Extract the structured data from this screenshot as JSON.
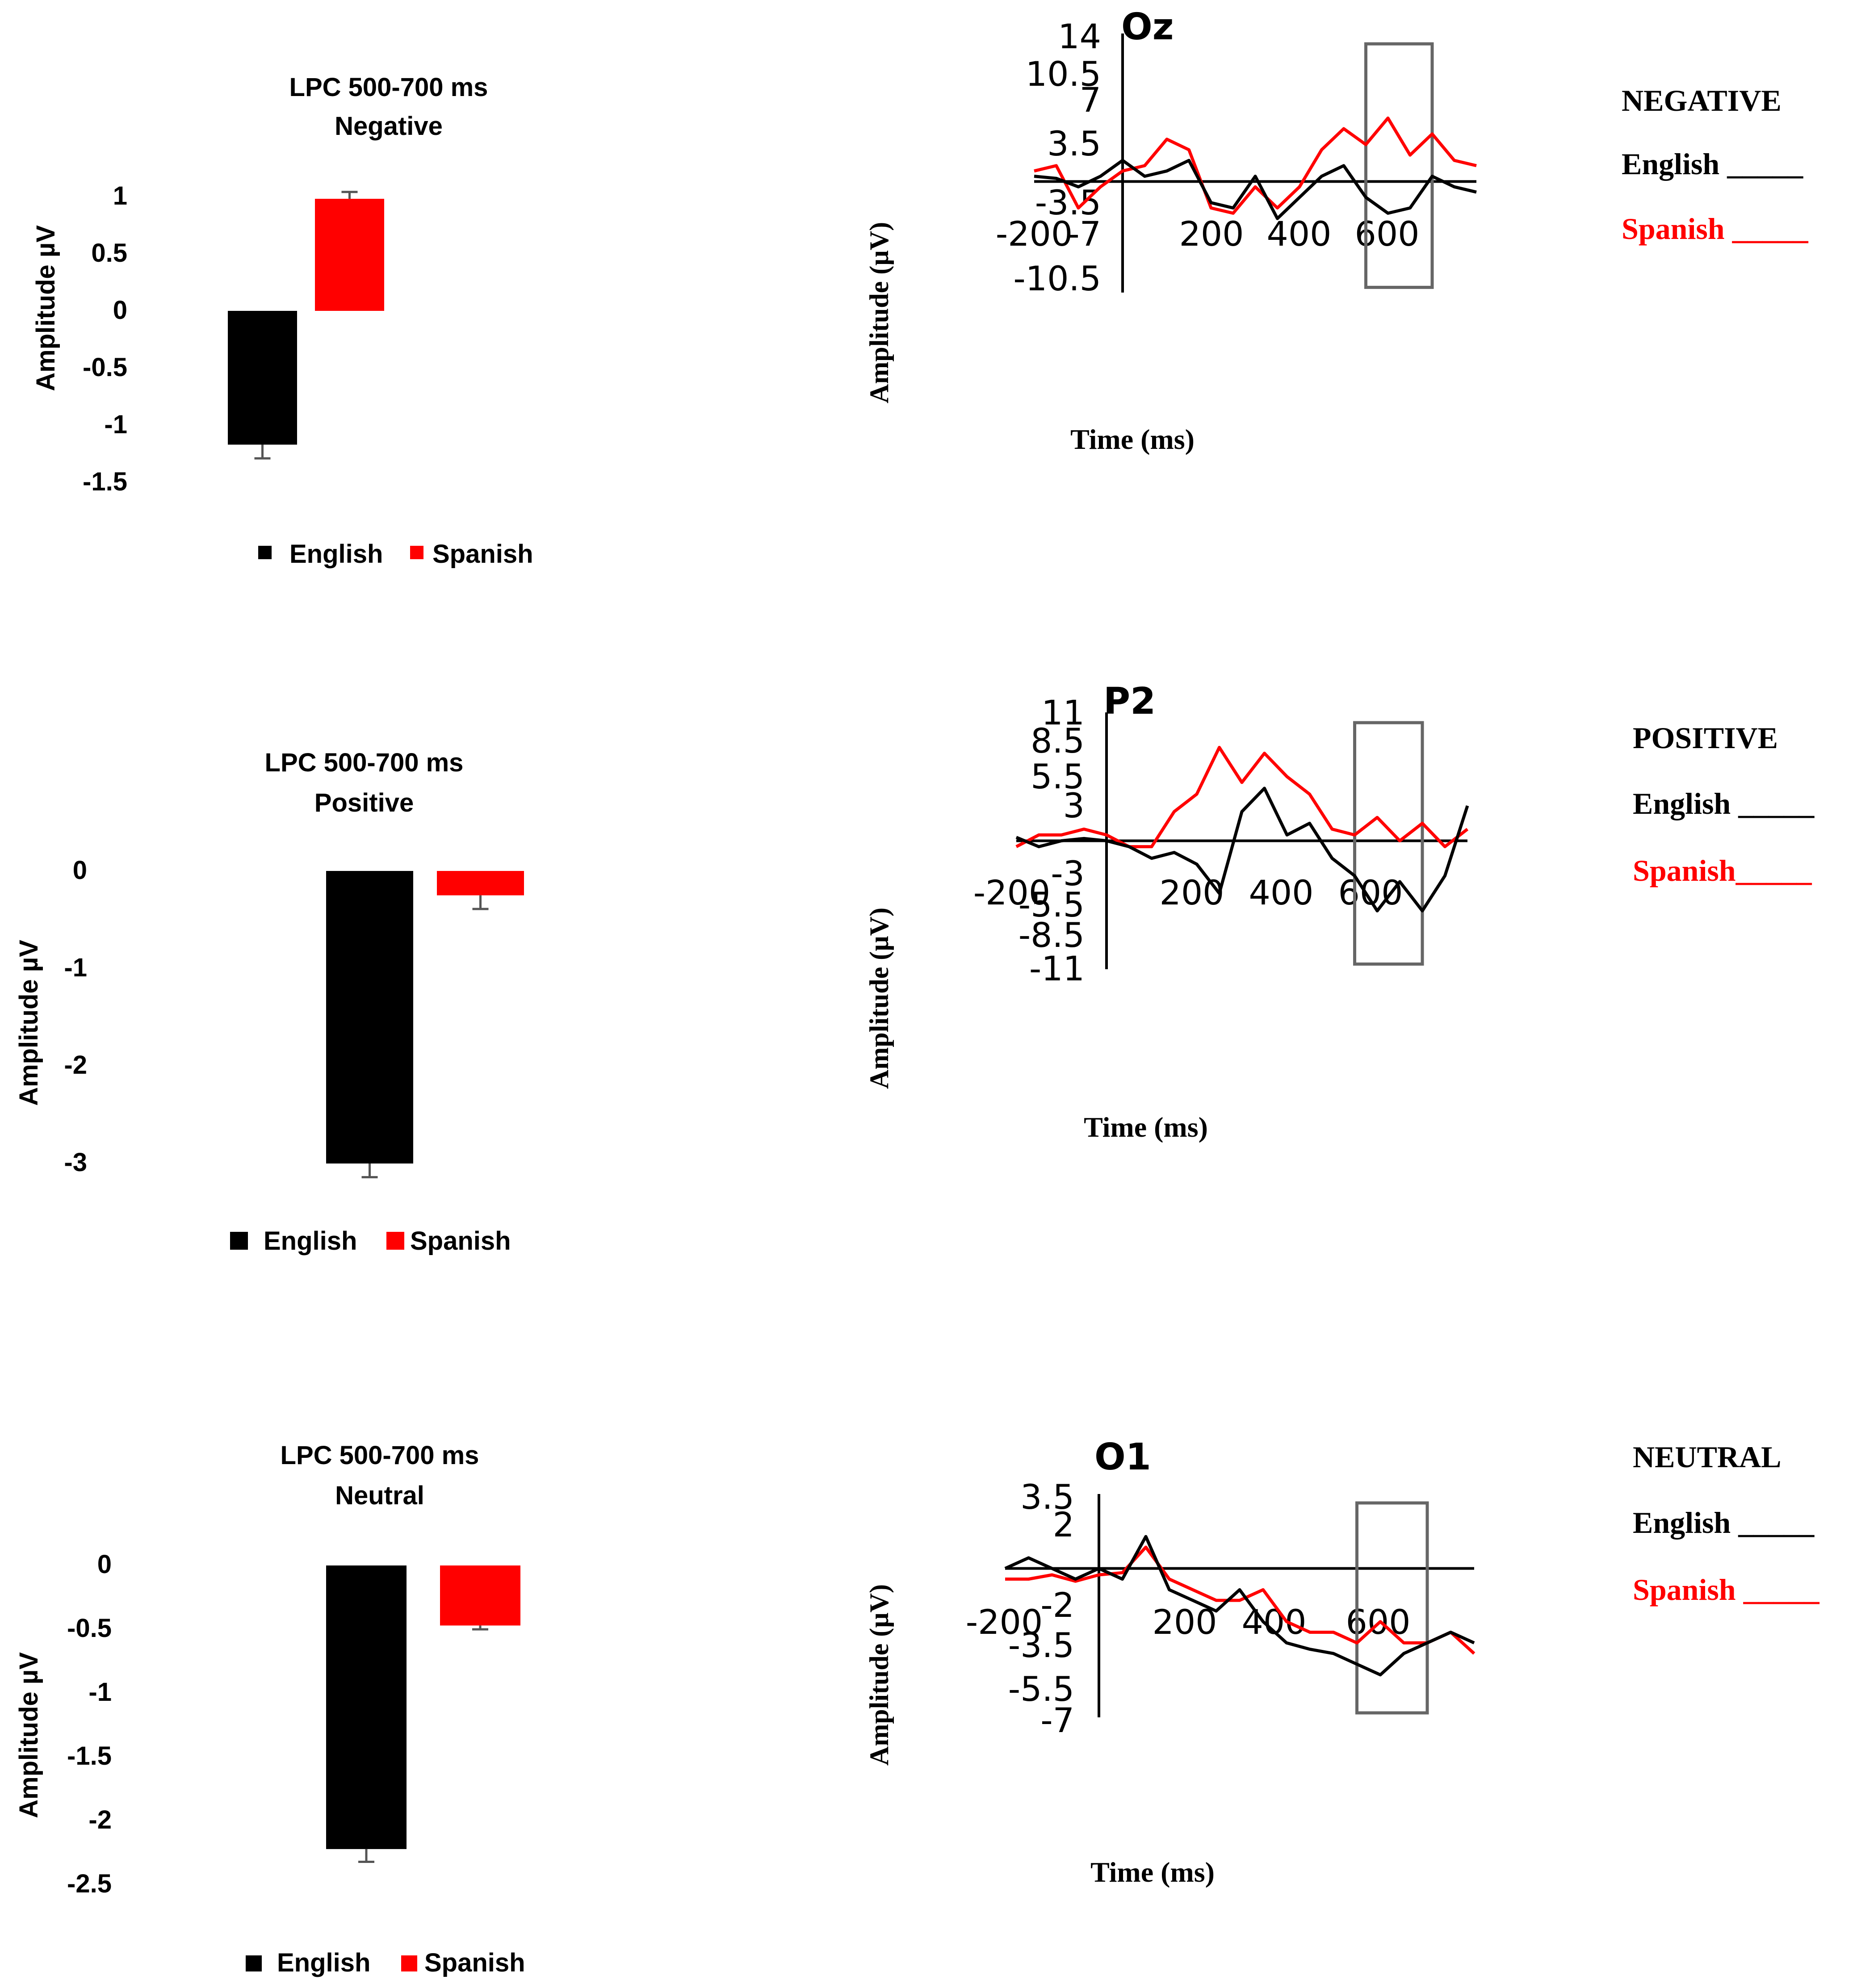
{
  "bar_panels": [
    {
      "title_line1": "LPC 500-700 ms",
      "title_line2": "Negative",
      "ylabel": "Amplitude µV",
      "tick_labels": [
        "1",
        "0.5",
        "0",
        "-0.5",
        "-1",
        "-1.5"
      ],
      "legend": [
        "English",
        "Spanish"
      ]
    },
    {
      "title_line1": "LPC 500-700 ms",
      "title_line2": "Positive",
      "ylabel": "Amplitude µV",
      "tick_labels": [
        "0",
        "-1",
        "-2",
        "-3"
      ],
      "legend": [
        "English",
        "Spanish"
      ]
    },
    {
      "title_line1": "LPC 500-700 ms",
      "title_line2": "Neutral",
      "ylabel": "Amplitude µV",
      "tick_labels": [
        "0",
        "-0.5",
        "-1",
        "-1.5",
        "-2",
        "-2.5"
      ],
      "legend": [
        "English",
        "Spanish"
      ]
    }
  ],
  "erp_panels": [
    {
      "electrode": "Oz",
      "y_tick_labels": [
        "14",
        "10.5",
        "7",
        "3.5",
        "-3.5",
        "-7",
        "-10.5"
      ],
      "x_tick_labels": [
        "-200",
        "200",
        "400",
        "600"
      ],
      "ylabel": "Amplitude    (µV)",
      "xlabel": "Time (ms)",
      "condition": "NEGATIVE",
      "legend_english": "English _____",
      "legend_spanish": "Spanish _____"
    },
    {
      "electrode": "P2",
      "y_tick_labels": [
        "11",
        "8.5",
        "5.5",
        "3",
        "-3",
        "-5.5",
        "-8.5",
        "-11"
      ],
      "x_tick_labels": [
        "-200",
        "200",
        "400",
        "600"
      ],
      "ylabel": "Amplitude    (µV)",
      "xlabel": "Time (ms)",
      "condition": "POSITIVE",
      "legend_english": "English _____",
      "legend_spanish": "Spanish_____"
    },
    {
      "electrode": "O1",
      "y_tick_labels": [
        "3.5",
        "2",
        "-2",
        "-3.5",
        "-5.5",
        "-7"
      ],
      "x_tick_labels": [
        "-200",
        "200",
        "400",
        "600"
      ],
      "ylabel": "Amplitude    (µV)",
      "xlabel": "Time (ms)",
      "condition": "NEUTRAL",
      "legend_english": "English _____",
      "legend_spanish": "Spanish _____"
    }
  ],
  "colors": {
    "english": "#000000",
    "spanish": "#ff0000",
    "window_box": "#666666"
  },
  "chart_data": [
    {
      "type": "bar",
      "title": "LPC 500-700 ms Negative",
      "ylabel": "Amplitude µV",
      "ylim": [
        -1.5,
        1
      ],
      "categories": [
        "English",
        "Spanish"
      ],
      "values": [
        -1.17,
        0.98
      ],
      "errors": [
        0.12,
        0.06
      ],
      "legend_position": "bottom"
    },
    {
      "type": "bar",
      "title": "LPC 500-700 ms Positive",
      "ylabel": "Amplitude µV",
      "ylim": [
        -3,
        0
      ],
      "categories": [
        "English",
        "Spanish"
      ],
      "values": [
        -3.0,
        -0.25
      ],
      "errors": [
        0.14,
        0.14
      ],
      "legend_position": "bottom"
    },
    {
      "type": "bar",
      "title": "LPC 500-700 ms Neutral",
      "ylabel": "Amplitude µV",
      "ylim": [
        -2.5,
        0
      ],
      "categories": [
        "English",
        "Spanish"
      ],
      "values": [
        -2.22,
        -0.47
      ],
      "errors": [
        0.1,
        0.03
      ],
      "legend_position": "bottom"
    },
    {
      "type": "line",
      "title": "Oz",
      "xlabel": "Time (ms)",
      "ylabel": "Amplitude (µV)",
      "xlim": [
        -200,
        800
      ],
      "ylim": [
        -10.5,
        14
      ],
      "window": [
        550,
        700
      ],
      "x": [
        -200,
        -150,
        -100,
        -50,
        0,
        50,
        100,
        150,
        200,
        250,
        300,
        350,
        400,
        450,
        500,
        550,
        600,
        650,
        700,
        750,
        800
      ],
      "series": [
        {
          "name": "English",
          "values": [
            0.5,
            0.3,
            -0.5,
            0.5,
            2.0,
            0.5,
            1.0,
            2.0,
            -2.0,
            -2.5,
            0.5,
            -3.5,
            -1.5,
            0.5,
            1.5,
            -1.5,
            -3.0,
            -2.5,
            0.5,
            -0.5,
            -1.0
          ]
        },
        {
          "name": "Spanish",
          "values": [
            1.0,
            1.5,
            -2.5,
            -0.5,
            1.0,
            1.5,
            4.0,
            3.0,
            -2.5,
            -3.0,
            -0.5,
            -2.5,
            -0.5,
            3.0,
            5.0,
            3.5,
            6.0,
            2.5,
            4.5,
            2.0,
            1.5
          ]
        }
      ]
    },
    {
      "type": "line",
      "title": "P2",
      "xlabel": "Time (ms)",
      "ylabel": "Amplitude (µV)",
      "xlim": [
        -200,
        800
      ],
      "ylim": [
        -11,
        11
      ],
      "window": [
        550,
        700
      ],
      "x": [
        -200,
        -150,
        -100,
        -50,
        0,
        50,
        100,
        150,
        200,
        250,
        300,
        350,
        400,
        450,
        500,
        550,
        600,
        650,
        700,
        750,
        800
      ],
      "series": [
        {
          "name": "English",
          "values": [
            0.3,
            -0.5,
            0.0,
            0.2,
            0.0,
            -0.5,
            -1.5,
            -1.0,
            -2.0,
            -4.5,
            2.5,
            4.5,
            0.5,
            1.5,
            -1.5,
            -3.0,
            -6.0,
            -3.5,
            -6.0,
            -3.0,
            3.0
          ]
        },
        {
          "name": "Spanish",
          "values": [
            -0.5,
            0.5,
            0.5,
            1.0,
            0.5,
            -0.5,
            -0.5,
            2.5,
            4.0,
            8.0,
            5.0,
            7.5,
            5.5,
            4.0,
            1.0,
            0.5,
            2.0,
            0.0,
            1.5,
            -0.5,
            1.0
          ]
        }
      ]
    },
    {
      "type": "line",
      "title": "O1",
      "xlabel": "Time (ms)",
      "ylabel": "Amplitude (µV)",
      "xlim": [
        -200,
        800
      ],
      "ylim": [
        -7,
        3.5
      ],
      "window": [
        550,
        700
      ],
      "x": [
        -200,
        -150,
        -100,
        -50,
        0,
        50,
        100,
        150,
        200,
        250,
        300,
        350,
        400,
        450,
        500,
        550,
        600,
        650,
        700,
        750,
        800
      ],
      "series": [
        {
          "name": "English",
          "values": [
            0.0,
            0.5,
            0.0,
            -0.5,
            0.0,
            -0.5,
            1.5,
            -1.0,
            -1.5,
            -2.0,
            -1.0,
            -2.5,
            -3.5,
            -3.8,
            -4.0,
            -4.5,
            -5.0,
            -4.0,
            -3.5,
            -3.0,
            -3.5
          ]
        },
        {
          "name": "Spanish",
          "values": [
            -0.5,
            -0.5,
            -0.3,
            -0.6,
            -0.3,
            -0.2,
            1.0,
            -0.5,
            -1.0,
            -1.5,
            -1.5,
            -1.0,
            -2.5,
            -3.0,
            -3.0,
            -3.5,
            -2.5,
            -3.5,
            -3.5,
            -3.0,
            -4.0
          ]
        }
      ]
    }
  ]
}
